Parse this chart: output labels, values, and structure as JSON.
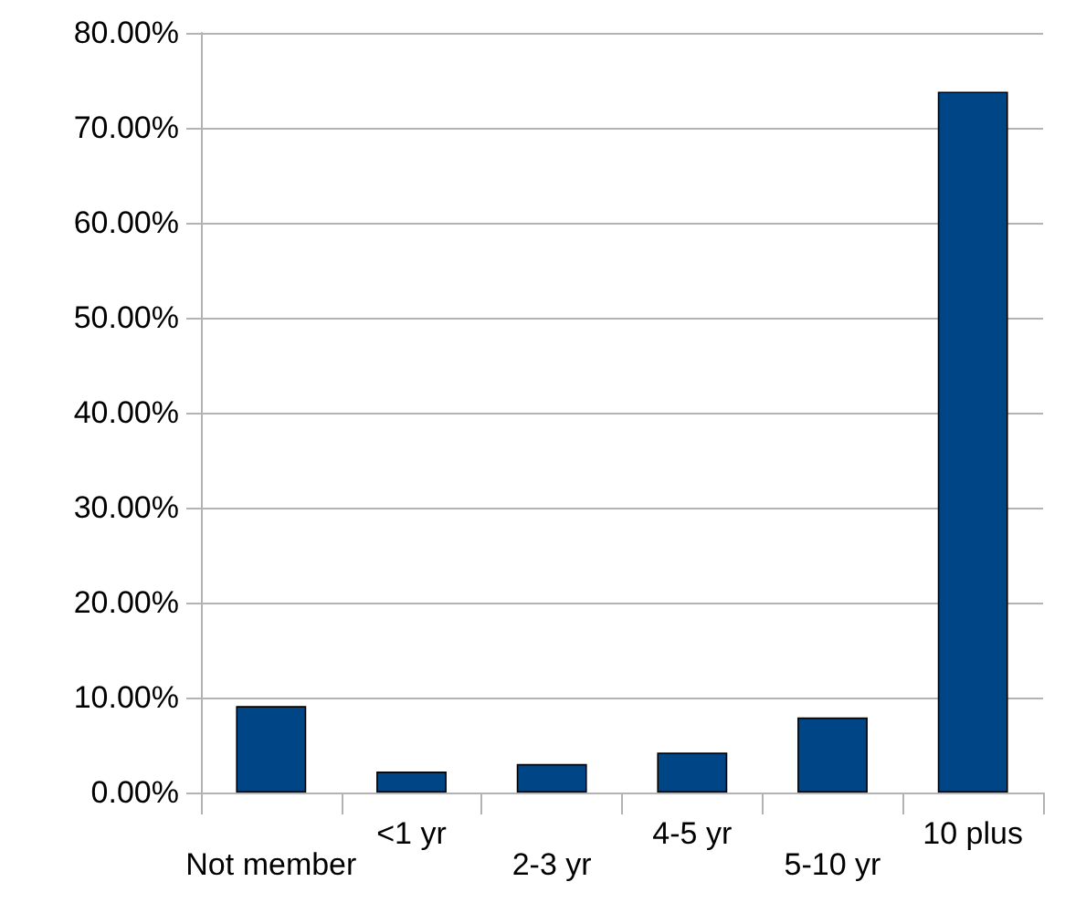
{
  "chart_data": {
    "type": "bar",
    "categories": [
      "Not member",
      "<1 yr",
      "2-3 yr",
      "4-5 yr",
      "5-10 yr",
      "10 plus"
    ],
    "series": [
      {
        "color": "#004586",
        "values": [
          9.1,
          2.2,
          3.0,
          4.2,
          7.9,
          73.8
        ]
      }
    ],
    "ylim": [
      0,
      80
    ],
    "yticks": [
      {
        "value": 0,
        "label": "0.00%"
      },
      {
        "value": 10,
        "label": "10.00%"
      },
      {
        "value": 20,
        "label": "20.00%"
      },
      {
        "value": 30,
        "label": "30.00%"
      },
      {
        "value": 40,
        "label": "40.00%"
      },
      {
        "value": 50,
        "label": "50.00%"
      },
      {
        "value": 60,
        "label": "60.00%"
      },
      {
        "value": 70,
        "label": "70.00%"
      },
      {
        "value": 80,
        "label": "80.00%"
      }
    ],
    "grid": "y"
  }
}
